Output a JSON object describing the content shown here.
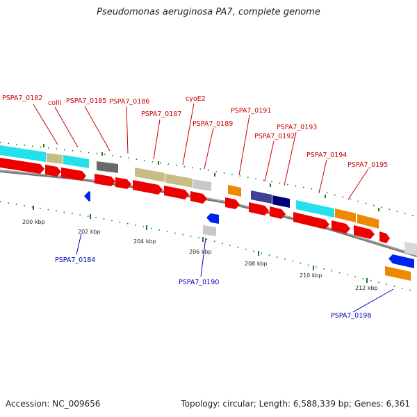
{
  "title": "Pseudomonas aeruginosa PA7, complete genome",
  "footer": {
    "accession": "Accession: NC_009656",
    "topology": "Topology: circular; Length: 6,588,339 bp; Genes: 6,361"
  },
  "colors": {
    "cds": "#ee0000",
    "label_top": "#cc0000",
    "label_bottom": "#0000bb",
    "cyan": "#22e0ec",
    "khaki": "#c4bd85",
    "dark_gray": "#6a6a6a",
    "light_gray": "#c8c8c8",
    "orange": "#ee8800",
    "navy": "#000077",
    "slate": "#404095",
    "blue": "#0022ee",
    "tick": "#1a7a1a",
    "backbone": "#888888"
  },
  "top_labels": [
    "PSPA7_0182",
    "colII",
    "PSPA7_0185",
    "PSPA7_0186",
    "PSPA7_0187",
    "cyoE2",
    "PSPA7_0189",
    "PSPA7_0191",
    "PSPA7_0192",
    "PSPA7_0193",
    "PSPA7_0194",
    "PSPA7_0195"
  ],
  "bottom_labels": [
    "PSPA7_0184",
    "PSPA7_0190",
    "PSPA7_0198"
  ],
  "ticks": [
    "200 kbp",
    "202 kbp",
    "204 kbp",
    "206 kbp",
    "208 kbp",
    "210 kbp",
    "212 kbp"
  ]
}
